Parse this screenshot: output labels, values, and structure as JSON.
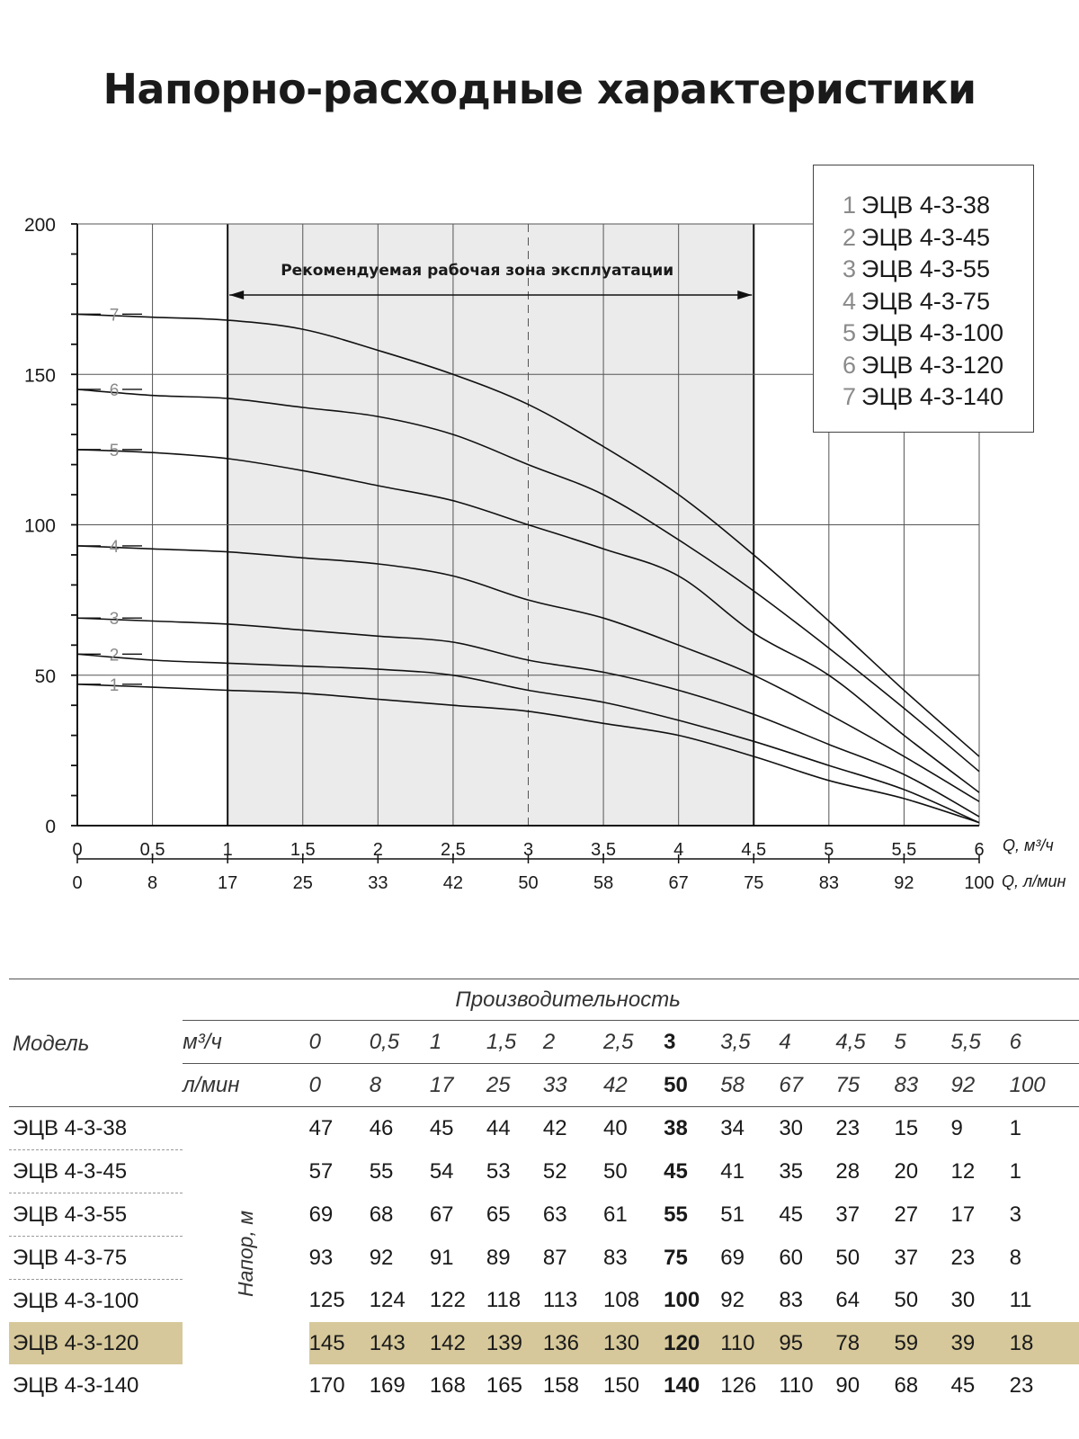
{
  "title": "Напорно-расходные характеристики",
  "chart_data": {
    "type": "line",
    "ylim": [
      0,
      200
    ],
    "yticks": [
      0,
      50,
      100,
      150,
      200
    ],
    "x": [
      0,
      0.5,
      1,
      1.5,
      2,
      2.5,
      3,
      3.5,
      4,
      4.5,
      5,
      5.5,
      6
    ],
    "x_labels": [
      "0",
      "0,5",
      "1",
      "1,5",
      "2",
      "2,5",
      "3",
      "3,5",
      "4",
      "4,5",
      "5",
      "5,5",
      "6"
    ],
    "x2_labels": [
      "0",
      "8",
      "17",
      "25",
      "33",
      "42",
      "50",
      "58",
      "67",
      "75",
      "83",
      "92",
      "100"
    ],
    "xlabel": "Q, м³/ч",
    "xlabel2": "Q, л/мин",
    "zone_label": "Рекомендуемая рабочая зона эксплуатации",
    "zone_range": [
      1,
      4.5
    ],
    "dashed_x": 3,
    "series": [
      {
        "num": "1",
        "name": "ЭЦВ 4-3-38",
        "values": [
          47,
          46,
          45,
          44,
          42,
          40,
          38,
          34,
          30,
          23,
          15,
          9,
          1
        ]
      },
      {
        "num": "2",
        "name": "ЭЦВ 4-3-45",
        "values": [
          57,
          55,
          54,
          53,
          52,
          50,
          45,
          41,
          35,
          28,
          20,
          12,
          1
        ]
      },
      {
        "num": "3",
        "name": "ЭЦВ 4-3-55",
        "values": [
          69,
          68,
          67,
          65,
          63,
          61,
          55,
          51,
          45,
          37,
          27,
          17,
          3
        ]
      },
      {
        "num": "4",
        "name": "ЭЦВ 4-3-75",
        "values": [
          93,
          92,
          91,
          89,
          87,
          83,
          75,
          69,
          60,
          50,
          37,
          23,
          8
        ]
      },
      {
        "num": "5",
        "name": "ЭЦВ 4-3-100",
        "values": [
          125,
          124,
          122,
          118,
          113,
          108,
          100,
          92,
          83,
          64,
          50,
          30,
          11
        ]
      },
      {
        "num": "6",
        "name": "ЭЦВ 4-3-120",
        "values": [
          145,
          143,
          142,
          139,
          136,
          130,
          120,
          110,
          95,
          78,
          59,
          39,
          18
        ]
      },
      {
        "num": "7",
        "name": "ЭЦВ 4-3-140",
        "values": [
          170,
          169,
          168,
          165,
          158,
          150,
          140,
          126,
          110,
          90,
          68,
          45,
          23
        ]
      }
    ]
  },
  "table": {
    "header_group": "Производительность",
    "model_header": "Модель",
    "unit_m3": "м³/ч",
    "unit_lmin": "л/мин",
    "head_label": "Напор, м",
    "m3_values": [
      "0",
      "0,5",
      "1",
      "1,5",
      "2",
      "2,5",
      "3",
      "3,5",
      "4",
      "4,5",
      "5",
      "5,5",
      "6"
    ],
    "lmin_values": [
      "0",
      "8",
      "17",
      "25",
      "33",
      "42",
      "50",
      "58",
      "67",
      "75",
      "83",
      "92",
      "100"
    ],
    "bold_index": 6,
    "highlight_row": 5,
    "highlight_color": "#d6c89a",
    "rows": [
      {
        "model": "ЭЦВ 4-3-38",
        "values": [
          "47",
          "46",
          "45",
          "44",
          "42",
          "40",
          "38",
          "34",
          "30",
          "23",
          "15",
          "9",
          "1"
        ]
      },
      {
        "model": "ЭЦВ 4-3-45",
        "values": [
          "57",
          "55",
          "54",
          "53",
          "52",
          "50",
          "45",
          "41",
          "35",
          "28",
          "20",
          "12",
          "1"
        ]
      },
      {
        "model": "ЭЦВ 4-3-55",
        "values": [
          "69",
          "68",
          "67",
          "65",
          "63",
          "61",
          "55",
          "51",
          "45",
          "37",
          "27",
          "17",
          "3"
        ]
      },
      {
        "model": "ЭЦВ 4-3-75",
        "values": [
          "93",
          "92",
          "91",
          "89",
          "87",
          "83",
          "75",
          "69",
          "60",
          "50",
          "37",
          "23",
          "8"
        ]
      },
      {
        "model": "ЭЦВ 4-3-100",
        "values": [
          "125",
          "124",
          "122",
          "118",
          "113",
          "108",
          "100",
          "92",
          "83",
          "64",
          "50",
          "30",
          "11"
        ]
      },
      {
        "model": "ЭЦВ 4-3-120",
        "values": [
          "145",
          "143",
          "142",
          "139",
          "136",
          "130",
          "120",
          "110",
          "95",
          "78",
          "59",
          "39",
          "18"
        ]
      },
      {
        "model": "ЭЦВ 4-3-140",
        "values": [
          "170",
          "169",
          "168",
          "165",
          "158",
          "150",
          "140",
          "126",
          "110",
          "90",
          "68",
          "45",
          "23"
        ]
      }
    ]
  }
}
